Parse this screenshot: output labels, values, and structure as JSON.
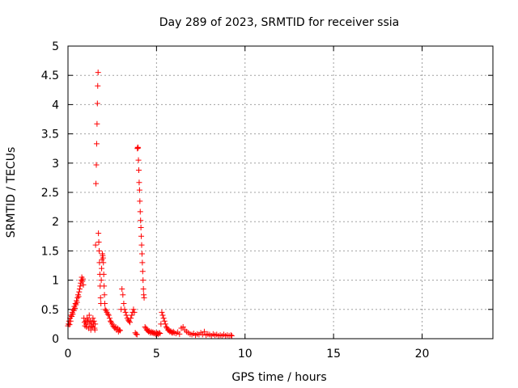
{
  "chart_data": {
    "type": "scatter",
    "title": "Day 289 of 2023, SRMTID for receiver ssia",
    "xlabel": "GPS time / hours",
    "ylabel": "SRMTID / TECUs",
    "xlim": [
      0,
      24
    ],
    "ylim": [
      0,
      5
    ],
    "x_ticks": [
      0,
      5,
      10,
      15,
      20
    ],
    "x_tick_labels": [
      "0",
      "5",
      "10",
      "15",
      "20"
    ],
    "y_ticks": [
      0,
      0.5,
      1,
      1.5,
      2,
      2.5,
      3,
      3.5,
      4,
      4.5,
      5
    ],
    "y_tick_labels": [
      "0",
      "0.5",
      "1",
      "1.5",
      "2",
      "2.5",
      "3",
      "3.5",
      "4",
      "4.5",
      "5"
    ],
    "grid": true,
    "marker": "plus",
    "series": [
      {
        "name": "SRMTID",
        "color": "#ff0000",
        "x": [
          0.0,
          0.03,
          0.06,
          0.09,
          0.12,
          0.15,
          0.18,
          0.21,
          0.24,
          0.27,
          0.3,
          0.33,
          0.36,
          0.39,
          0.42,
          0.45,
          0.48,
          0.51,
          0.54,
          0.57,
          0.6,
          0.63,
          0.66,
          0.69,
          0.72,
          0.75,
          0.78,
          0.81,
          0.84,
          0.87,
          0.9,
          0.93,
          0.96,
          0.99,
          1.02,
          1.05,
          1.08,
          1.11,
          1.14,
          1.17,
          1.2,
          1.23,
          1.26,
          1.29,
          1.32,
          1.35,
          1.38,
          1.41,
          1.44,
          1.47,
          1.5,
          1.52,
          1.54,
          1.56,
          1.58,
          1.6,
          1.62,
          1.64,
          1.66,
          1.68,
          1.7,
          1.72,
          1.74,
          1.76,
          1.78,
          1.8,
          1.82,
          1.84,
          1.86,
          1.88,
          1.9,
          1.92,
          1.94,
          1.96,
          1.98,
          2.0,
          2.02,
          2.04,
          2.06,
          2.08,
          2.1,
          2.15,
          2.2,
          2.25,
          2.3,
          2.35,
          2.4,
          2.45,
          2.5,
          2.55,
          2.6,
          2.65,
          2.7,
          2.75,
          2.8,
          2.85,
          2.9,
          2.95,
          3.0,
          3.05,
          3.1,
          3.15,
          3.2,
          3.25,
          3.3,
          3.35,
          3.4,
          3.45,
          3.5,
          3.55,
          3.6,
          3.65,
          3.7,
          3.75,
          3.8,
          3.85,
          3.9,
          3.92,
          3.94,
          3.96,
          3.98,
          4.0,
          4.02,
          4.04,
          4.06,
          4.08,
          4.1,
          4.12,
          4.14,
          4.16,
          4.18,
          4.2,
          4.22,
          4.24,
          4.26,
          4.28,
          4.3,
          4.35,
          4.4,
          4.45,
          4.5,
          4.55,
          4.6,
          4.65,
          4.7,
          4.75,
          4.8,
          4.85,
          4.9,
          4.95,
          5.0,
          5.05,
          5.1,
          5.15,
          5.2,
          5.25,
          5.3,
          5.35,
          5.4,
          5.45,
          5.5,
          5.55,
          5.6,
          5.65,
          5.7,
          5.75,
          5.8,
          5.85,
          5.9,
          5.95,
          6.0,
          6.1,
          6.2,
          6.3,
          6.4,
          6.5,
          6.6,
          6.7,
          6.8,
          6.9,
          7.0,
          7.1,
          7.2,
          7.3,
          7.4,
          7.5,
          7.6,
          7.7,
          7.8,
          7.9,
          8.0,
          8.1,
          8.2,
          8.3,
          8.4,
          8.5,
          8.6,
          8.7,
          8.8,
          8.9,
          9.0,
          9.1,
          9.2,
          9.25
        ],
        "y": [
          0.22,
          0.25,
          0.3,
          0.24,
          0.35,
          0.3,
          0.4,
          0.38,
          0.45,
          0.42,
          0.5,
          0.48,
          0.55,
          0.52,
          0.6,
          0.58,
          0.65,
          0.62,
          0.7,
          0.75,
          0.72,
          0.8,
          0.85,
          0.9,
          0.95,
          1.0,
          1.05,
          0.98,
          1.02,
          0.92,
          0.35,
          0.28,
          0.22,
          0.3,
          0.25,
          0.2,
          0.35,
          0.28,
          0.32,
          0.18,
          0.4,
          0.25,
          0.3,
          0.15,
          0.22,
          0.28,
          0.2,
          0.35,
          0.25,
          0.3,
          0.18,
          0.15,
          0.25,
          1.6,
          2.65,
          2.97,
          3.33,
          3.67,
          4.02,
          4.32,
          4.55,
          1.8,
          1.65,
          1.5,
          1.3,
          1.1,
          0.9,
          0.7,
          0.6,
          1.0,
          1.2,
          1.35,
          1.45,
          1.42,
          1.38,
          1.3,
          1.1,
          0.9,
          0.75,
          0.6,
          0.5,
          0.48,
          0.45,
          0.42,
          0.4,
          0.35,
          0.3,
          0.28,
          0.25,
          0.22,
          0.2,
          0.18,
          0.2,
          0.15,
          0.18,
          0.12,
          0.15,
          0.14,
          0.5,
          0.85,
          0.75,
          0.6,
          0.5,
          0.45,
          0.4,
          0.35,
          0.32,
          0.3,
          0.28,
          0.35,
          0.4,
          0.45,
          0.5,
          0.45,
          0.1,
          0.08,
          0.07,
          3.25,
          3.27,
          3.26,
          3.05,
          2.88,
          2.67,
          2.54,
          2.35,
          2.17,
          2.02,
          1.9,
          1.75,
          1.6,
          1.45,
          1.3,
          1.15,
          1.0,
          0.85,
          0.75,
          0.7,
          0.2,
          0.18,
          0.15,
          0.14,
          0.12,
          0.13,
          0.1,
          0.12,
          0.1,
          0.11,
          0.09,
          0.1,
          0.08,
          0.1,
          0.09,
          0.08,
          0.1,
          0.09,
          0.25,
          0.45,
          0.4,
          0.35,
          0.3,
          0.25,
          0.2,
          0.18,
          0.15,
          0.14,
          0.12,
          0.13,
          0.11,
          0.1,
          0.12,
          0.1,
          0.09,
          0.11,
          0.08,
          0.18,
          0.2,
          0.15,
          0.12,
          0.1,
          0.08,
          0.07,
          0.09,
          0.06,
          0.08,
          0.07,
          0.1,
          0.07,
          0.12,
          0.06,
          0.08,
          0.07,
          0.05,
          0.08,
          0.06,
          0.07,
          0.05,
          0.06,
          0.05,
          0.07,
          0.05,
          0.06,
          0.05,
          0.06,
          0.05
        ]
      }
    ]
  }
}
